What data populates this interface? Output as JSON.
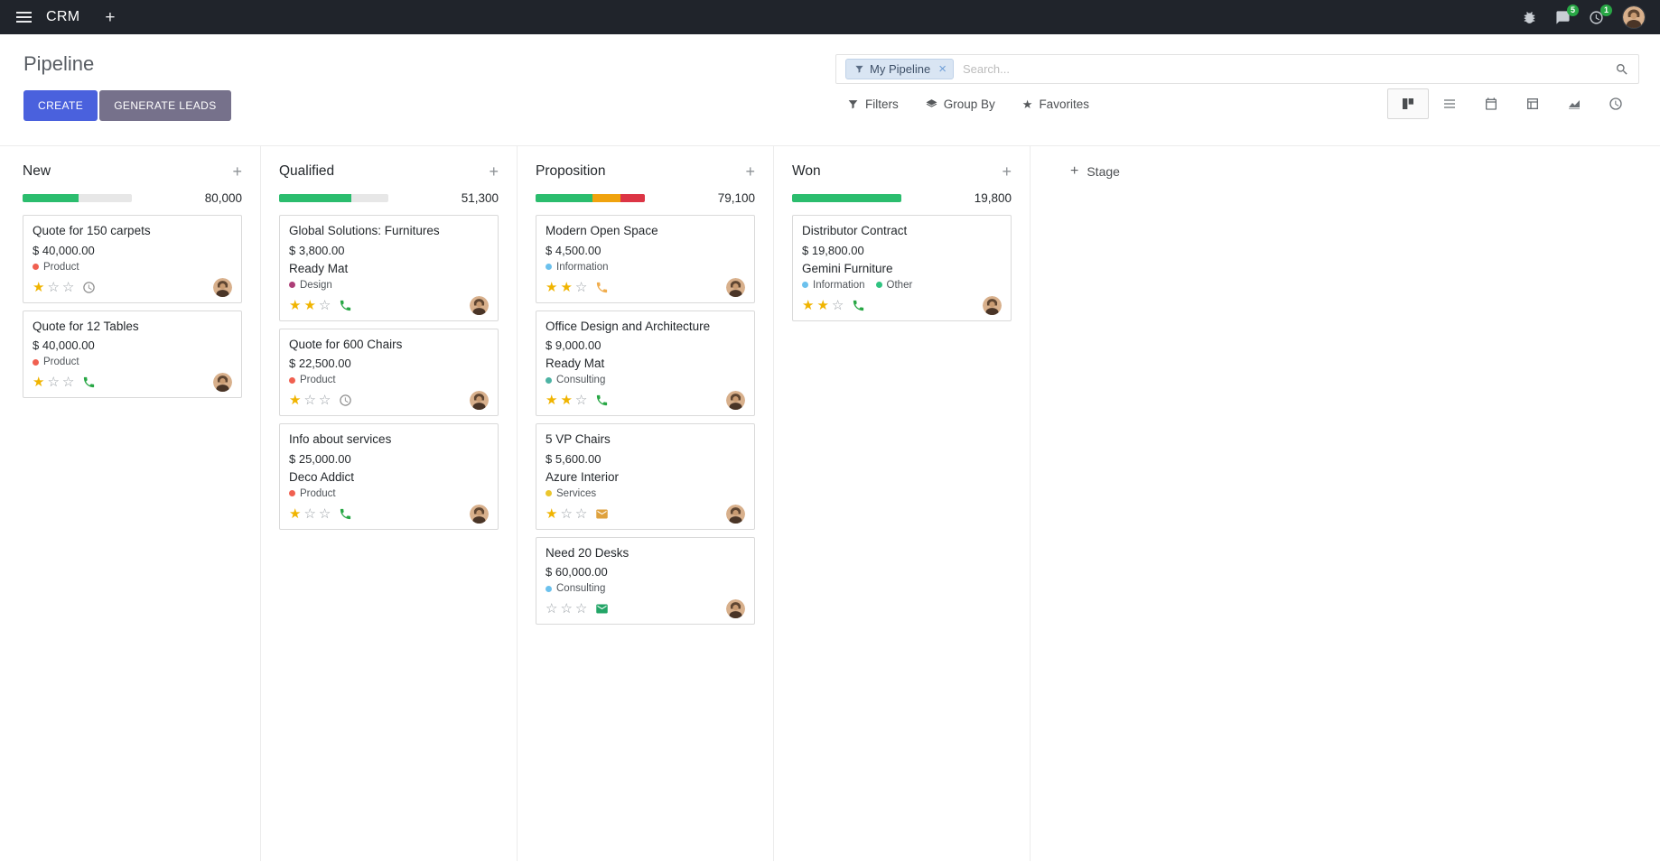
{
  "navbar": {
    "app_name": "CRM",
    "messages_badge": "5",
    "activities_badge": "1"
  },
  "control_panel": {
    "title": "Pipeline",
    "buttons": {
      "create": "CREATE",
      "generate_leads": "GENERATE LEADS"
    },
    "search_options": {
      "filters": "Filters",
      "group_by": "Group By",
      "favorites": "Favorites"
    },
    "search": {
      "facet": "My Pipeline",
      "placeholder": "Search..."
    },
    "active_view": "kanban",
    "view_switcher": [
      "kanban",
      "list",
      "calendar",
      "pivot",
      "graph",
      "activity"
    ]
  },
  "board": {
    "add_stage_label": "Stage",
    "columns": [
      {
        "name": "New",
        "total": "80,000",
        "progress": [
          {
            "color": "#2bbd6e",
            "pct": 51
          }
        ],
        "cards": [
          {
            "title": "Quote for 150 carpets",
            "amount": "$ 40,000.00",
            "tags": [
              {
                "label": "Product",
                "color": "#f06050"
              }
            ],
            "stars": 1,
            "activity": {
              "icon": "clock",
              "color": "#8f8f8f"
            }
          },
          {
            "title": "Quote for 12 Tables",
            "amount": "$ 40,000.00",
            "tags": [
              {
                "label": "Product",
                "color": "#f06050"
              }
            ],
            "stars": 1,
            "activity": {
              "icon": "phone",
              "color": "#28a745"
            }
          }
        ]
      },
      {
        "name": "Qualified",
        "total": "51,300",
        "progress": [
          {
            "color": "#2bbd6e",
            "pct": 66
          }
        ],
        "cards": [
          {
            "title": "Global Solutions: Furnitures",
            "amount": "$ 3,800.00",
            "company": "Ready Mat",
            "tags": [
              {
                "label": "Design",
                "color": "#ad3e77"
              }
            ],
            "stars": 2,
            "activity": {
              "icon": "phone",
              "color": "#28a745"
            }
          },
          {
            "title": "Quote for 600 Chairs",
            "amount": "$ 22,500.00",
            "tags": [
              {
                "label": "Product",
                "color": "#f06050"
              }
            ],
            "stars": 1,
            "activity": {
              "icon": "clock",
              "color": "#8f8f8f"
            }
          },
          {
            "title": "Info about services",
            "amount": "$ 25,000.00",
            "company": "Deco Addict",
            "tags": [
              {
                "label": "Product",
                "color": "#f06050"
              }
            ],
            "stars": 1,
            "activity": {
              "icon": "phone",
              "color": "#28a745"
            }
          }
        ]
      },
      {
        "name": "Proposition",
        "total": "79,100",
        "progress": [
          {
            "color": "#2bbd6e",
            "pct": 52
          },
          {
            "color": "#f0a30e",
            "pct": 26
          },
          {
            "color": "#dc3545",
            "pct": 22
          }
        ],
        "cards": [
          {
            "title": "Modern Open Space",
            "amount": "$ 4,500.00",
            "tags": [
              {
                "label": "Information",
                "color": "#6cc1ed"
              }
            ],
            "stars": 2,
            "activity": {
              "icon": "phone",
              "color": "#f0ad4e"
            }
          },
          {
            "title": "Office Design and Architecture",
            "amount": "$ 9,000.00",
            "company": "Ready Mat",
            "tags": [
              {
                "label": "Consulting",
                "color": "#4db3a4"
              }
            ],
            "stars": 2,
            "activity": {
              "icon": "phone",
              "color": "#28a745"
            }
          },
          {
            "title": "5 VP Chairs",
            "amount": "$ 5,600.00",
            "company": "Azure Interior",
            "tags": [
              {
                "label": "Services",
                "color": "#ebc62d"
              }
            ],
            "stars": 1,
            "activity": {
              "icon": "mail",
              "color": "#dfa23e"
            }
          },
          {
            "title": "Need 20 Desks",
            "amount": "$ 60,000.00",
            "tags": [
              {
                "label": "Consulting",
                "color": "#6cc1ed"
              }
            ],
            "stars": 0,
            "activity": {
              "icon": "mail",
              "color": "#23a567"
            }
          }
        ]
      },
      {
        "name": "Won",
        "total": "19,800",
        "progress": [
          {
            "color": "#2bbd6e",
            "pct": 100
          }
        ],
        "cards": [
          {
            "title": "Distributor Contract",
            "amount": "$ 19,800.00",
            "company": "Gemini Furniture",
            "tags": [
              {
                "label": "Information",
                "color": "#6cc1ed"
              },
              {
                "label": "Other",
                "color": "#30c381"
              }
            ],
            "stars": 2,
            "activity": {
              "icon": "phone",
              "color": "#28a745"
            }
          }
        ]
      }
    ]
  }
}
